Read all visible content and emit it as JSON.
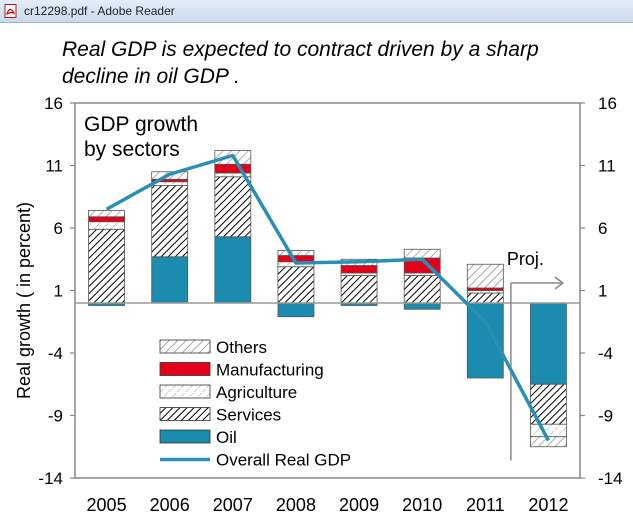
{
  "window": {
    "title": "cr12298.pdf - Adobe Reader",
    "icon": "pdf-icon"
  },
  "headline": "Real GDP is expected to  contract driven by a sharp decline in  oil GDP .",
  "chart_data": {
    "type": "bar",
    "subtype": "stacked-bar-with-line",
    "title": "GDP growth by sectors",
    "title_lines": [
      "GDP growth",
      "by sectors"
    ],
    "ylabel": "Real growth ( in percent)",
    "xlabel": "",
    "ylim": [
      -14,
      16
    ],
    "yticks": [
      "16",
      "11",
      "6",
      "1",
      "-4",
      "-9",
      "-14"
    ],
    "y2ticks": [
      "16",
      "11",
      "6",
      "1",
      "-4",
      "-9",
      "-14"
    ],
    "categories": [
      "2005",
      "2006",
      "2007",
      "2008",
      "2009",
      "2010",
      "2011",
      "2012"
    ],
    "series": [
      {
        "name": "Oil",
        "color": "#1b8cb0",
        "pattern": "solid",
        "values": [
          -0.2,
          3.7,
          5.3,
          -1.1,
          -0.2,
          -0.5,
          -6.0,
          -6.5
        ]
      },
      {
        "name": "Services",
        "color": "#000000",
        "pattern": "dense-hatch",
        "values": [
          5.9,
          5.7,
          4.8,
          2.9,
          2.2,
          2.2,
          0.8,
          -3.2
        ]
      },
      {
        "name": "Agriculture",
        "color": "#9cd39c",
        "pattern": "dotted-hatch",
        "values": [
          0.6,
          0.3,
          0.3,
          0.4,
          0.2,
          0.2,
          0.2,
          -1.0
        ]
      },
      {
        "name": "Manufacturing",
        "color": "#e3001b",
        "pattern": "solid",
        "values": [
          0.4,
          0.2,
          0.7,
          0.5,
          0.6,
          1.2,
          0.2,
          0.0
        ]
      },
      {
        "name": "Others",
        "color": "#8a8a8a",
        "pattern": "light-hatch",
        "values": [
          0.5,
          0.6,
          1.1,
          0.4,
          0.5,
          0.7,
          1.9,
          -0.8
        ]
      }
    ],
    "line": {
      "name": "Overall Real GDP",
      "color": "#2a8fb4",
      "values": [
        7.5,
        10.3,
        11.8,
        3.2,
        3.3,
        3.5,
        -1.5,
        -11.0
      ]
    },
    "legend": [
      "Others",
      "Manufacturing",
      "Agriculture",
      "Services",
      "Oil",
      "Overall Real GDP"
    ],
    "legend_position": "lower-left",
    "annotation": "Proj.",
    "grid": false
  }
}
